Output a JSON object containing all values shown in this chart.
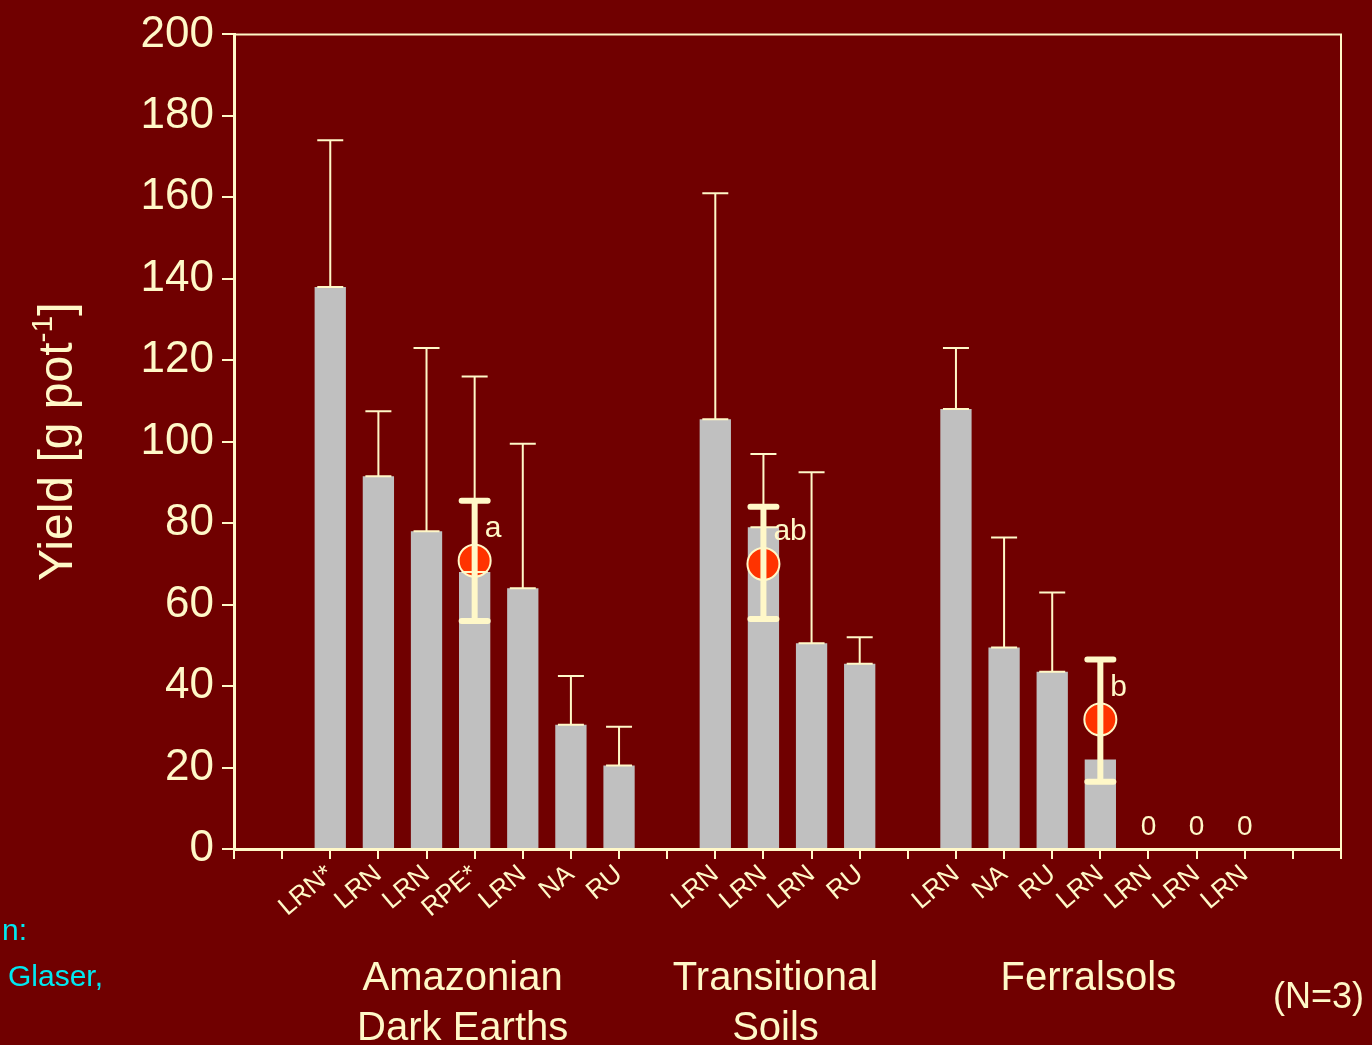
{
  "chart_data": {
    "type": "bar",
    "ylabel": "Yield [g pot$^{-1}$]",
    "categories": [
      null,
      null,
      "LRN*",
      "LRN",
      "LRN",
      "RPE*",
      "LRN",
      "NA",
      "RU",
      null,
      "LRN",
      "LRN",
      "LRN",
      "RU",
      null,
      "LRN",
      "NA",
      "RU",
      "LRN",
      "LRN",
      "LRN",
      "LRN",
      null,
      null
    ],
    "series": [
      {
        "color": "#c0c0c0",
        "values": [
          null,
          null,
          138,
          91.5,
          78,
          68,
          64,
          30.5,
          20.5,
          null,
          105.5,
          79,
          50.5,
          45.5,
          null,
          108,
          49.5,
          43.5,
          22,
          0,
          0,
          0,
          null,
          null
        ],
        "errors": [
          null,
          null,
          [
            138,
            174
          ],
          [
            91.5,
            107.5
          ],
          [
            78,
            123
          ],
          [
            68,
            116
          ],
          [
            64,
            99.5
          ],
          [
            30.5,
            42.5
          ],
          [
            20.5,
            30
          ],
          null,
          [
            105.5,
            161
          ],
          [
            79,
            97
          ],
          [
            50.5,
            92.5
          ],
          [
            45.5,
            52
          ],
          null,
          [
            108,
            123
          ],
          [
            49.5,
            76.5
          ],
          [
            43.5,
            63
          ],
          null,
          null,
          null,
          null,
          null,
          null
        ],
        "value_labels": [
          null,
          null,
          null,
          null,
          null,
          null,
          null,
          null,
          null,
          null,
          null,
          null,
          null,
          null,
          null,
          null,
          null,
          null,
          null,
          "0",
          "0",
          "0",
          null,
          null
        ]
      },
      {
        "type": "scatter",
        "color": "#ff3300",
        "marker": "circle",
        "values": [
          null,
          null,
          null,
          null,
          null,
          70.8,
          null,
          null,
          null,
          null,
          null,
          70,
          null,
          null,
          null,
          null,
          null,
          null,
          31.8,
          null,
          null,
          null,
          null,
          null
        ],
        "errors": [
          null,
          null,
          null,
          null,
          null,
          [
            56,
            85.5
          ],
          null,
          null,
          null,
          null,
          null,
          [
            56.5,
            84
          ],
          null,
          null,
          null,
          null,
          null,
          null,
          [
            16.5,
            46.5
          ],
          null,
          null,
          null,
          null,
          null
        ],
        "value_labels": [
          null,
          null,
          null,
          null,
          null,
          "a",
          null,
          null,
          null,
          null,
          null,
          "ab",
          null,
          null,
          null,
          null,
          null,
          null,
          "b",
          null,
          null,
          null,
          null,
          null
        ]
      }
    ],
    "ylim": [
      0,
      200
    ],
    "yticks": [
      0,
      20,
      40,
      60,
      80,
      100,
      120,
      140,
      160,
      180,
      200
    ],
    "grid": false,
    "legend": false,
    "annotations": [
      "Amazonian\nDark Earths",
      "Transitional\nSoils",
      "Ferralsols",
      "(N=3)",
      "n:",
      "Glaser,"
    ]
  }
}
